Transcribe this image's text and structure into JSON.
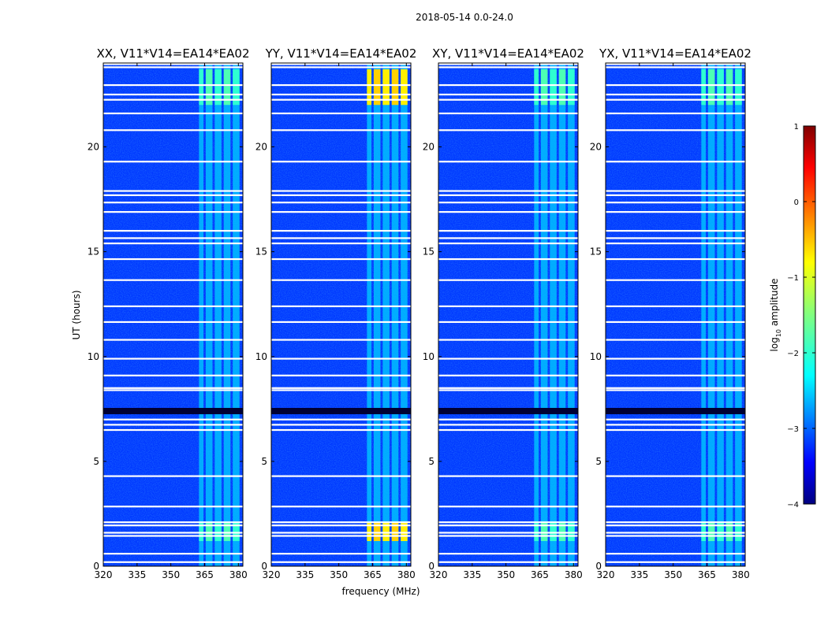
{
  "chart_data": {
    "type": "heatmap",
    "suptitle": "2018-05-14 0.0-24.0",
    "xlabel": "frequency (MHz)",
    "ylabel": "UT (hours)",
    "xlim": [
      320,
      382
    ],
    "ylim": [
      0,
      24
    ],
    "x_ticks": [
      320,
      335,
      350,
      365,
      380
    ],
    "y_ticks": [
      0,
      5,
      10,
      15,
      20
    ],
    "colorbar": {
      "label_prefix": "log",
      "label_sub": "10",
      "label_suffix": " amplitude",
      "range": [
        -4,
        1
      ],
      "ticks": [
        1,
        0,
        -1,
        -2,
        -3,
        -4
      ],
      "tick_labels": [
        "1",
        "0",
        "−1",
        "−2",
        "−3",
        "−4"
      ],
      "colormap": "jet"
    },
    "panels": [
      {
        "title": "XX, V11*V14=EA14*EA02",
        "rfi_strength": "medium"
      },
      {
        "title": "YY, V11*V14=EA14*EA02",
        "rfi_strength": "strong"
      },
      {
        "title": "XY, V11*V14=EA14*EA02",
        "rfi_strength": "medium"
      },
      {
        "title": "YX, V11*V14=EA14*EA02",
        "rfi_strength": "medium"
      }
    ],
    "rfi_band_mhz": [
      [
        362.5,
        364.5
      ],
      [
        365.5,
        368.5
      ],
      [
        369.5,
        372.5
      ],
      [
        373.5,
        376.5
      ],
      [
        377.5,
        380.5
      ]
    ],
    "flagged_ut_hours": [
      0.2,
      0.6,
      1.45,
      1.6,
      1.95,
      2.1,
      2.85,
      4.3,
      6.5,
      6.75,
      7.0,
      8.4,
      8.5,
      9.1,
      9.9,
      10.8,
      11.65,
      12.4,
      13.65,
      14.65,
      15.4,
      15.65,
      16.0,
      16.9,
      17.35,
      17.7,
      17.9,
      19.3,
      20.8,
      21.6,
      22.25,
      22.5,
      22.95,
      23.8,
      23.95
    ],
    "background_log_amp": -3.1,
    "rfi_log_amp_strong": -0.8,
    "rfi_log_amp_medium": -1.9,
    "rfi_windows_ut_hours": [
      [
        1.2,
        2.1
      ],
      [
        22.0,
        23.7
      ]
    ]
  }
}
